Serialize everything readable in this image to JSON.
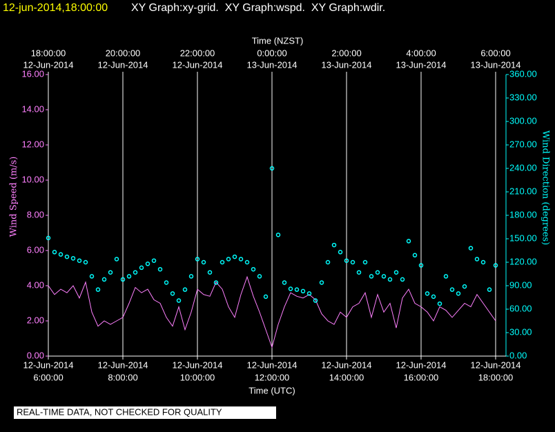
{
  "chart_data": {
    "type": "xy-time",
    "time_stamp": "12-jun-2014,18:00:00",
    "title": "XY Graph:xy-grid.  XY Graph:wspd.  XY Graph:wdir.",
    "x_label_top": "Time (NZST)",
    "x_label": "Time (UTC)",
    "y_label": "Wind Speed (m/s)",
    "y2_label": "Wind Direction (degrees)",
    "note": "REAL-TIME DATA, NOT CHECKED FOR QUALITY",
    "grid": true,
    "xlim": [
      "2014-06-12T06:00",
      "2014-06-12T18:00"
    ],
    "xticks": [
      {
        "value": "2014-06-12T06:00",
        "label": [
          "12-Jun-2014",
          "6:00:00"
        ]
      },
      {
        "value": "2014-06-12T08:00",
        "label": [
          "12-Jun-2014",
          "8:00:00"
        ]
      },
      {
        "value": "2014-06-12T10:00",
        "label": [
          "12-Jun-2014",
          "10:00:00"
        ]
      },
      {
        "value": "2014-06-12T12:00",
        "label": [
          "12-Jun-2014",
          "12:00:00"
        ]
      },
      {
        "value": "2014-06-12T14:00",
        "label": [
          "12-Jun-2014",
          "14:00:00"
        ]
      },
      {
        "value": "2014-06-12T16:00",
        "label": [
          "12-Jun-2014",
          "16:00:00"
        ]
      },
      {
        "value": "2014-06-12T18:00",
        "label": [
          "12-Jun-2014",
          "18:00:00"
        ]
      }
    ],
    "x2ticks": [
      {
        "value": "2014-06-12T06:00",
        "label": [
          "18:00:00",
          "12-Jun-2014"
        ]
      },
      {
        "value": "2014-06-12T08:00",
        "label": [
          "20:00:00",
          "12-Jun-2014"
        ]
      },
      {
        "value": "2014-06-12T10:00",
        "label": [
          "22:00:00",
          "12-Jun-2014"
        ]
      },
      {
        "value": "2014-06-12T12:00",
        "label": [
          "0:00:00",
          "13-Jun-2014"
        ]
      },
      {
        "value": "2014-06-12T14:00",
        "label": [
          "2:00:00",
          "13-Jun-2014"
        ]
      },
      {
        "value": "2014-06-12T16:00",
        "label": [
          "4:00:00",
          "13-Jun-2014"
        ]
      },
      {
        "value": "2014-06-12T18:00",
        "label": [
          "6:00:00",
          "13-Jun-2014"
        ]
      }
    ],
    "ylim": [
      0,
      16
    ],
    "yticks": [
      {
        "value": 0,
        "label": "0.00"
      },
      {
        "value": 2,
        "label": "2.00"
      },
      {
        "value": 4,
        "label": "4.00"
      },
      {
        "value": 6,
        "label": "6.00"
      },
      {
        "value": 8,
        "label": "8.00"
      },
      {
        "value": 10,
        "label": "10.00"
      },
      {
        "value": 12,
        "label": "12.00"
      },
      {
        "value": 14,
        "label": "14.00"
      },
      {
        "value": 16,
        "label": "16.00"
      }
    ],
    "y2lim": [
      0,
      360
    ],
    "y2ticks": [
      {
        "value": 0,
        "label": "0.00"
      },
      {
        "value": 30,
        "label": "30.00"
      },
      {
        "value": 60,
        "label": "60.00"
      },
      {
        "value": 90,
        "label": "90.00"
      },
      {
        "value": 120,
        "label": "120.00"
      },
      {
        "value": 150,
        "label": "150.00"
      },
      {
        "value": 180,
        "label": "180.00"
      },
      {
        "value": 210,
        "label": "210.00"
      },
      {
        "value": 240,
        "label": "240.00"
      },
      {
        "value": 270,
        "label": "270.00"
      },
      {
        "value": 300,
        "label": "300.00"
      },
      {
        "value": 330,
        "label": "330.00"
      },
      {
        "value": 360,
        "label": "360.00"
      }
    ],
    "x": [
      "2014-06-12T06:00",
      "2014-06-12T06:10",
      "2014-06-12T06:20",
      "2014-06-12T06:30",
      "2014-06-12T06:40",
      "2014-06-12T06:50",
      "2014-06-12T07:00",
      "2014-06-12T07:10",
      "2014-06-12T07:20",
      "2014-06-12T07:30",
      "2014-06-12T07:40",
      "2014-06-12T07:50",
      "2014-06-12T08:00",
      "2014-06-12T08:10",
      "2014-06-12T08:20",
      "2014-06-12T08:30",
      "2014-06-12T08:40",
      "2014-06-12T08:50",
      "2014-06-12T09:00",
      "2014-06-12T09:10",
      "2014-06-12T09:20",
      "2014-06-12T09:30",
      "2014-06-12T09:40",
      "2014-06-12T09:50",
      "2014-06-12T10:00",
      "2014-06-12T10:10",
      "2014-06-12T10:20",
      "2014-06-12T10:30",
      "2014-06-12T10:40",
      "2014-06-12T10:50",
      "2014-06-12T11:00",
      "2014-06-12T11:10",
      "2014-06-12T11:20",
      "2014-06-12T11:30",
      "2014-06-12T11:40",
      "2014-06-12T11:50",
      "2014-06-12T12:00",
      "2014-06-12T12:10",
      "2014-06-12T12:20",
      "2014-06-12T12:30",
      "2014-06-12T12:40",
      "2014-06-12T12:50",
      "2014-06-12T13:00",
      "2014-06-12T13:10",
      "2014-06-12T13:20",
      "2014-06-12T13:30",
      "2014-06-12T13:40",
      "2014-06-12T13:50",
      "2014-06-12T14:00",
      "2014-06-12T14:10",
      "2014-06-12T14:20",
      "2014-06-12T14:30",
      "2014-06-12T14:40",
      "2014-06-12T14:50",
      "2014-06-12T15:00",
      "2014-06-12T15:10",
      "2014-06-12T15:20",
      "2014-06-12T15:30",
      "2014-06-12T15:40",
      "2014-06-12T15:50",
      "2014-06-12T16:00",
      "2014-06-12T16:10",
      "2014-06-12T16:20",
      "2014-06-12T16:30",
      "2014-06-12T16:40",
      "2014-06-12T16:50",
      "2014-06-12T17:00",
      "2014-06-12T17:10",
      "2014-06-12T17:20",
      "2014-06-12T17:30",
      "2014-06-12T17:40",
      "2014-06-12T17:50",
      "2014-06-12T18:00"
    ],
    "series": [
      {
        "color": "#ff80ff",
        "style": "line",
        "values": [
          4.0,
          3.5,
          3.8,
          3.6,
          4.0,
          3.3,
          4.2,
          2.5,
          1.7,
          2.0,
          1.8,
          2.0,
          2.2,
          3.0,
          3.9,
          3.6,
          3.8,
          3.2,
          3.0,
          2.2,
          1.7,
          2.8,
          1.5,
          2.5,
          3.8,
          3.5,
          3.4,
          4.2,
          3.8,
          2.8,
          2.2,
          3.5,
          4.5,
          3.4,
          2.5,
          1.5,
          0.5,
          1.8,
          2.8,
          3.6,
          3.4,
          3.3,
          3.5,
          3.2,
          2.4,
          2.0,
          1.8,
          2.5,
          2.2,
          2.8,
          3.0,
          3.6,
          2.2,
          3.5,
          2.5,
          3.0,
          1.6,
          3.3,
          3.8,
          3.0,
          2.8,
          2.5,
          2.0,
          2.8,
          2.6,
          2.2,
          2.6,
          3.0,
          2.8,
          3.5,
          3.0,
          2.5,
          2.0
        ]
      },
      {
        "color": "#00ffff",
        "style": "circles",
        "axis": "y2",
        "values": [
          151,
          133,
          130,
          127,
          125,
          122,
          120,
          102,
          85,
          98,
          107,
          124,
          98,
          102,
          107,
          113,
          118,
          122,
          111,
          94,
          80,
          71,
          85,
          102,
          124,
          120,
          107,
          94,
          120,
          124,
          127,
          124,
          120,
          111,
          102,
          76,
          240,
          155,
          94,
          86,
          85,
          83,
          80,
          71,
          94,
          120,
          142,
          133,
          122,
          120,
          107,
          120,
          102,
          107,
          102,
          98,
          107,
          98,
          147,
          129,
          116,
          80,
          76,
          67,
          102,
          85,
          80,
          89,
          138,
          124,
          120,
          85,
          116
        ]
      }
    ]
  }
}
